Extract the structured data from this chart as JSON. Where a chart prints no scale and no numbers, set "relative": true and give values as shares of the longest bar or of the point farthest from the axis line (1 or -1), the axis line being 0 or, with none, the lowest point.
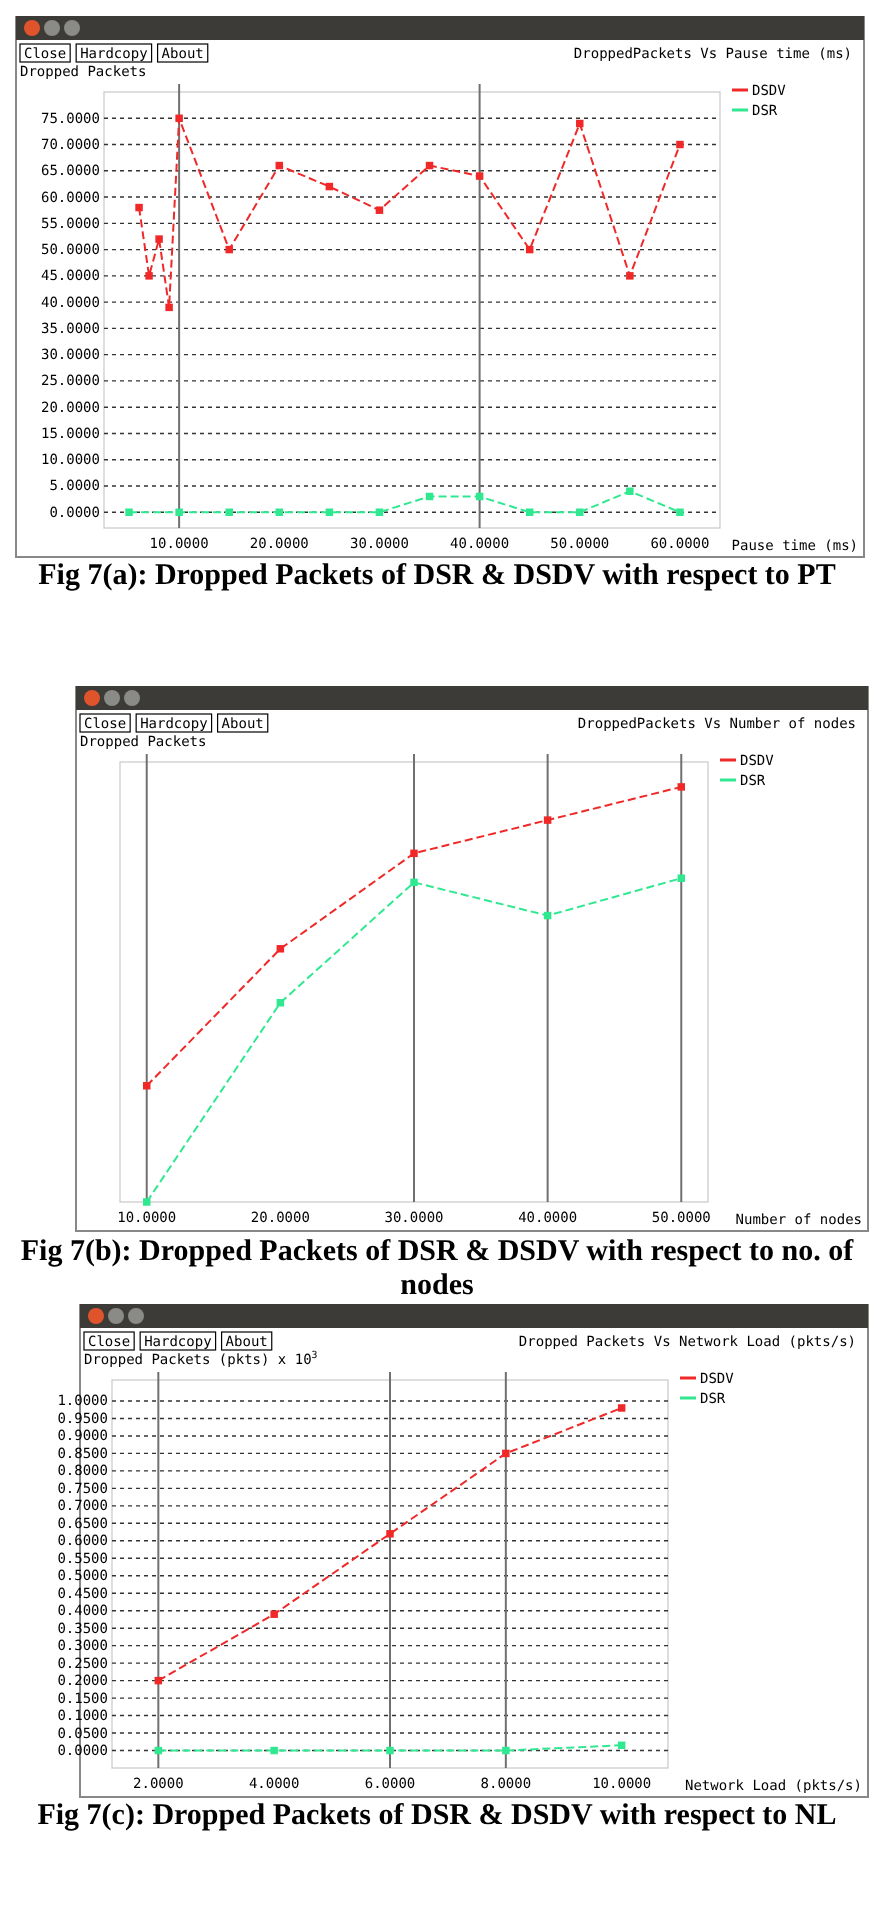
{
  "chart_data": [
    {
      "type": "line",
      "title": "DroppedPackets Vs Pause time (ms)",
      "ylabel": "Dropped Packets",
      "xlabel": "Pause time (ms)",
      "annotations": [
        "Close",
        "Hardcopy",
        "About",
        "Fig 7(a): Dropped Packets of DSR & DSDV with respect to PT"
      ],
      "series": [
        {
          "name": "DSDV",
          "color": "#f02828",
          "x": [
            6,
            7,
            8,
            9,
            10,
            15,
            20,
            25,
            30,
            35,
            40,
            45,
            50,
            55,
            60
          ],
          "values": [
            58,
            45,
            52,
            39,
            75,
            50,
            66,
            62,
            57.5,
            66,
            64,
            50,
            74,
            45,
            70
          ]
        },
        {
          "name": "DSR",
          "color": "#30e890",
          "x": [
            5,
            10,
            15,
            20,
            25,
            30,
            35,
            40,
            45,
            50,
            55,
            60
          ],
          "values": [
            0,
            0,
            0,
            0,
            0,
            0,
            3,
            3,
            0,
            0,
            4,
            0
          ]
        }
      ],
      "xlim": [
        2.5,
        64
      ],
      "ylim": [
        -3,
        80
      ],
      "xticks": [
        {
          "value": 10,
          "label": "10.0000"
        },
        {
          "value": 20,
          "label": "20.0000"
        },
        {
          "value": 30,
          "label": "30.0000"
        },
        {
          "value": 40,
          "label": "40.0000"
        },
        {
          "value": 50,
          "label": "50.0000"
        },
        {
          "value": 60,
          "label": "60.0000"
        }
      ],
      "yticks": [
        {
          "value": 0,
          "label": "0.0000"
        },
        {
          "value": 5,
          "label": "5.0000"
        },
        {
          "value": 10,
          "label": "10.0000"
        },
        {
          "value": 15,
          "label": "15.0000"
        },
        {
          "value": 20,
          "label": "20.0000"
        },
        {
          "value": 25,
          "label": "25.0000"
        },
        {
          "value": 30,
          "label": "30.0000"
        },
        {
          "value": 35,
          "label": "35.0000"
        },
        {
          "value": 40,
          "label": "40.0000"
        },
        {
          "value": 45,
          "label": "45.0000"
        },
        {
          "value": 50,
          "label": "50.0000"
        },
        {
          "value": 55,
          "label": "55.0000"
        },
        {
          "value": 60,
          "label": "60.0000"
        },
        {
          "value": 65,
          "label": "65.0000"
        },
        {
          "value": 70,
          "label": "70.0000"
        },
        {
          "value": 75,
          "label": "75.0000"
        }
      ],
      "ref_lines": [
        {
          "axis": "x",
          "value": 10,
          "color": "#707070"
        },
        {
          "axis": "x",
          "value": 40,
          "color": "#707070"
        }
      ],
      "grid": "y",
      "legend": "right",
      "marker": "square",
      "line_style": "dashed"
    },
    {
      "type": "line",
      "title": "DroppedPackets Vs Number of nodes",
      "ylabel": "Dropped Packets",
      "xlabel": "Number of nodes",
      "annotations": [
        "Close",
        "Hardcopy",
        "About",
        "Fig 7(b): Dropped Packets of DSR & DSDV with respect to no. of nodes"
      ],
      "relative": true,
      "series": [
        {
          "name": "DSDV",
          "color": "#f02828",
          "x": [
            10,
            20,
            30,
            40,
            50
          ],
          "values": [
            0.28,
            0.61,
            0.84,
            0.92,
            1
          ]
        },
        {
          "name": "DSR",
          "color": "#30e890",
          "x": [
            10,
            20,
            30,
            40,
            50
          ],
          "values": [
            0,
            0.48,
            0.77,
            0.69,
            0.78
          ]
        }
      ],
      "xlim": [
        8,
        52
      ],
      "xticks": [
        {
          "value": 10,
          "label": "10.0000"
        },
        {
          "value": 20,
          "label": "20.0000"
        },
        {
          "value": 30,
          "label": "30.0000"
        },
        {
          "value": 40,
          "label": "40.0000"
        },
        {
          "value": 50,
          "label": "50.0000"
        }
      ],
      "ref_lines": [
        {
          "axis": "x",
          "value": 10,
          "color": "#707070"
        },
        {
          "axis": "x",
          "value": 30,
          "color": "#707070"
        },
        {
          "axis": "x",
          "value": 40,
          "color": "#707070"
        },
        {
          "axis": "x",
          "value": 50,
          "color": "#707070"
        }
      ],
      "legend": "right",
      "marker": "square",
      "line_style": "dashed"
    },
    {
      "type": "line",
      "title": "Dropped Packets Vs Network Load (pkts/s)",
      "ylabel": "Dropped Packets (pkts) x 10$^{3}$",
      "xlabel": "Network Load (pkts/s)",
      "annotations": [
        "Close",
        "Hardcopy",
        "About",
        "Fig 7(c): Dropped Packets of DSR & DSDV with respect to NL"
      ],
      "series": [
        {
          "name": "DSDV",
          "color": "#f02828",
          "x": [
            2,
            4,
            6,
            8,
            10
          ],
          "values": [
            0.2,
            0.39,
            0.62,
            0.85,
            0.98
          ]
        },
        {
          "name": "DSR",
          "color": "#30e890",
          "x": [
            2,
            4,
            6,
            8,
            10
          ],
          "values": [
            0,
            0,
            0,
            0,
            0.015
          ]
        }
      ],
      "xlim": [
        1.2,
        10.8
      ],
      "ylim": [
        -0.05,
        1.06
      ],
      "xticks": [
        {
          "value": 2,
          "label": "2.0000"
        },
        {
          "value": 4,
          "label": "4.0000"
        },
        {
          "value": 6,
          "label": "6.0000"
        },
        {
          "value": 8,
          "label": "8.0000"
        },
        {
          "value": 10,
          "label": "10.0000"
        }
      ],
      "yticks": [
        {
          "value": 0,
          "label": "0.0000"
        },
        {
          "value": 0.05,
          "label": "0.0500"
        },
        {
          "value": 0.1,
          "label": "0.1000"
        },
        {
          "value": 0.15,
          "label": "0.1500"
        },
        {
          "value": 0.2,
          "label": "0.2000"
        },
        {
          "value": 0.25,
          "label": "0.2500"
        },
        {
          "value": 0.3,
          "label": "0.3000"
        },
        {
          "value": 0.35,
          "label": "0.3500"
        },
        {
          "value": 0.4,
          "label": "0.4000"
        },
        {
          "value": 0.45,
          "label": "0.4500"
        },
        {
          "value": 0.5,
          "label": "0.5000"
        },
        {
          "value": 0.55,
          "label": "0.5500"
        },
        {
          "value": 0.6,
          "label": "0.6000"
        },
        {
          "value": 0.65,
          "label": "0.6500"
        },
        {
          "value": 0.7,
          "label": "0.7000"
        },
        {
          "value": 0.75,
          "label": "0.7500"
        },
        {
          "value": 0.8,
          "label": "0.8000"
        },
        {
          "value": 0.85,
          "label": "0.8500"
        },
        {
          "value": 0.9,
          "label": "0.9000"
        },
        {
          "value": 0.95,
          "label": "0.9500"
        },
        {
          "value": 1,
          "label": "1.0000"
        }
      ],
      "ref_lines": [
        {
          "axis": "x",
          "value": 2,
          "color": "#707070"
        },
        {
          "axis": "x",
          "value": 6,
          "color": "#707070"
        },
        {
          "axis": "x",
          "value": 8,
          "color": "#707070"
        }
      ],
      "grid": "y",
      "legend": "right",
      "marker": "square",
      "line_style": "dashed"
    }
  ]
}
